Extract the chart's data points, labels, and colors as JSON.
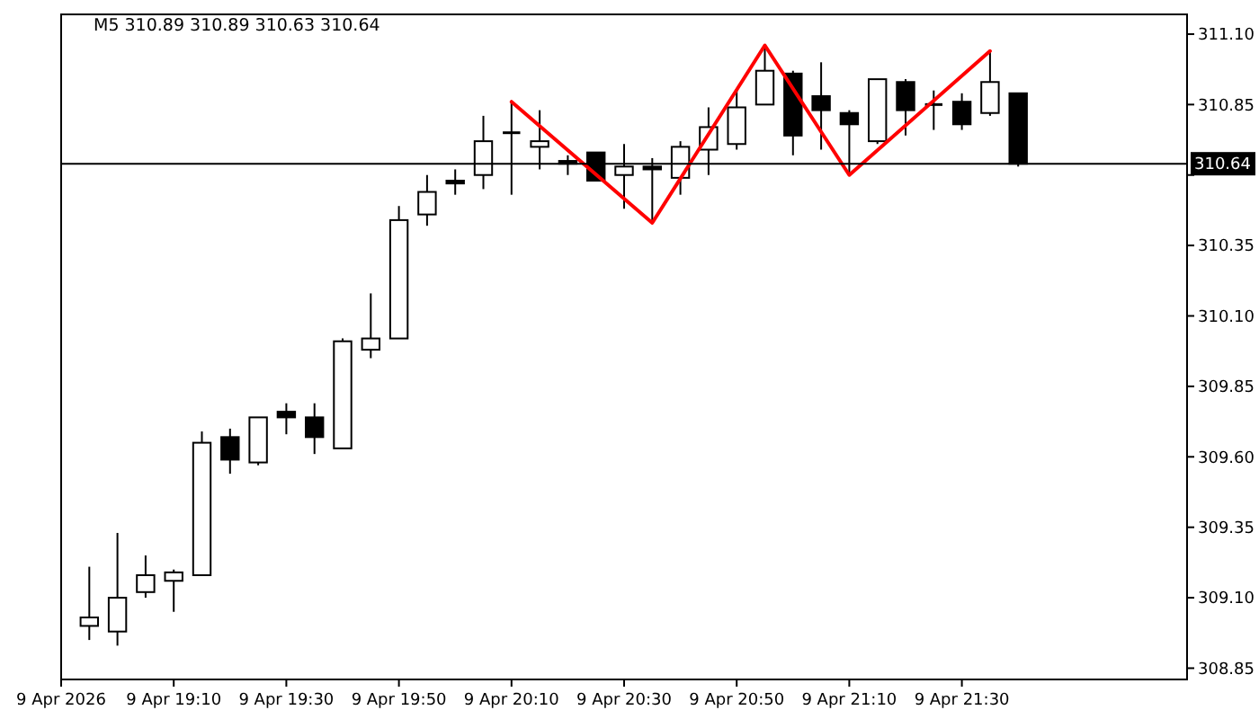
{
  "chart_data": {
    "type": "candlestick",
    "title": "M5  310.89 310.89 310.63 310.64",
    "color": "#000000",
    "x": [
      "2026-04-09T18:55",
      "2026-04-09T19:00",
      "2026-04-09T19:05",
      "2026-04-09T19:10",
      "2026-04-09T19:15",
      "2026-04-09T19:20",
      "2026-04-09T19:25",
      "2026-04-09T19:30",
      "2026-04-09T19:35",
      "2026-04-09T19:40",
      "2026-04-09T19:45",
      "2026-04-09T19:50",
      "2026-04-09T19:55",
      "2026-04-09T20:00",
      "2026-04-09T20:05",
      "2026-04-09T20:10",
      "2026-04-09T20:15",
      "2026-04-09T20:20",
      "2026-04-09T20:25",
      "2026-04-09T20:30",
      "2026-04-09T20:35",
      "2026-04-09T20:40",
      "2026-04-09T20:45",
      "2026-04-09T20:50",
      "2026-04-09T20:55",
      "2026-04-09T21:00",
      "2026-04-09T21:05",
      "2026-04-09T21:10",
      "2026-04-09T21:15",
      "2026-04-09T21:20",
      "2026-04-09T21:25",
      "2026-04-09T21:30",
      "2026-04-09T21:35",
      "2026-04-09T21:40"
    ],
    "ohlc": [
      [
        309.0,
        309.21,
        308.95,
        309.03
      ],
      [
        308.98,
        309.33,
        308.93,
        309.1
      ],
      [
        309.12,
        309.25,
        309.1,
        309.18
      ],
      [
        309.16,
        309.2,
        309.05,
        309.19
      ],
      [
        309.18,
        309.69,
        309.18,
        309.65
      ],
      [
        309.67,
        309.7,
        309.54,
        309.59
      ],
      [
        309.58,
        309.74,
        309.57,
        309.74
      ],
      [
        309.76,
        309.79,
        309.68,
        309.74
      ],
      [
        309.74,
        309.79,
        309.61,
        309.67
      ],
      [
        309.63,
        310.02,
        309.63,
        310.01
      ],
      [
        309.98,
        310.18,
        309.95,
        310.02
      ],
      [
        310.02,
        310.49,
        310.02,
        310.44
      ],
      [
        310.46,
        310.6,
        310.42,
        310.54
      ],
      [
        310.58,
        310.62,
        310.53,
        310.57
      ],
      [
        310.6,
        310.81,
        310.55,
        310.72
      ],
      [
        310.75,
        310.86,
        310.53,
        310.75
      ],
      [
        310.7,
        310.83,
        310.62,
        310.72
      ],
      [
        310.65,
        310.67,
        310.6,
        310.64
      ],
      [
        310.68,
        310.68,
        310.58,
        310.58
      ],
      [
        310.6,
        310.71,
        310.48,
        310.63
      ],
      [
        310.63,
        310.66,
        310.43,
        310.62
      ],
      [
        310.59,
        310.72,
        310.53,
        310.7
      ],
      [
        310.69,
        310.84,
        310.6,
        310.77
      ],
      [
        310.71,
        310.9,
        310.69,
        310.84
      ],
      [
        310.85,
        311.06,
        310.85,
        310.97
      ],
      [
        310.96,
        310.97,
        310.67,
        310.74
      ],
      [
        310.88,
        311.0,
        310.69,
        310.83
      ],
      [
        310.82,
        310.83,
        310.6,
        310.78
      ],
      [
        310.72,
        310.94,
        310.71,
        310.94
      ],
      [
        310.93,
        310.94,
        310.74,
        310.83
      ],
      [
        310.85,
        310.9,
        310.76,
        310.85
      ],
      [
        310.86,
        310.89,
        310.76,
        310.78
      ],
      [
        310.82,
        311.04,
        310.81,
        310.93
      ],
      [
        310.89,
        310.89,
        310.63,
        310.64
      ]
    ],
    "series": [
      {
        "type": "line",
        "color": "#ff0000",
        "x": [
          "2026-04-09T20:10",
          "2026-04-09T20:35",
          "2026-04-09T20:55",
          "2026-04-09T21:10",
          "2026-04-09T21:35"
        ],
        "values": [
          310.86,
          310.43,
          311.06,
          310.6,
          311.04
        ]
      }
    ],
    "xlim": [
      "2026-04-09T18:50",
      "2026-04-09T22:10"
    ],
    "xticks": [
      {
        "value": "2026-04-09T18:50",
        "label": "9 Apr 2026"
      },
      {
        "value": "2026-04-09T19:10",
        "label": "9 Apr 19:10"
      },
      {
        "value": "2026-04-09T19:30",
        "label": "9 Apr 19:30"
      },
      {
        "value": "2026-04-09T19:50",
        "label": "9 Apr 19:50"
      },
      {
        "value": "2026-04-09T20:10",
        "label": "9 Apr 20:10"
      },
      {
        "value": "2026-04-09T20:30",
        "label": "9 Apr 20:30"
      },
      {
        "value": "2026-04-09T20:50",
        "label": "9 Apr 20:50"
      },
      {
        "value": "2026-04-09T21:10",
        "label": "9 Apr 21:10"
      },
      {
        "value": "2026-04-09T21:30",
        "label": "9 Apr 21:30"
      }
    ],
    "ylim": [
      308.81,
      311.17
    ],
    "yticks": [
      {
        "value": 308.85,
        "label": "308.85"
      },
      {
        "value": 309.1,
        "label": "309.10"
      },
      {
        "value": 309.35,
        "label": "309.35"
      },
      {
        "value": 309.6,
        "label": "309.60"
      },
      {
        "value": 309.85,
        "label": "309.85"
      },
      {
        "value": 310.1,
        "label": "310.10"
      },
      {
        "value": 310.35,
        "label": "310.35"
      },
      {
        "value": 310.6,
        "label": null
      },
      {
        "value": 310.85,
        "label": "310.85"
      },
      {
        "value": 311.1,
        "label": "311.10"
      }
    ],
    "ref_lines": [
      {
        "axis": "y",
        "value": 310.64,
        "label": "310.64",
        "color": "#000000"
      }
    ],
    "grid": false
  }
}
